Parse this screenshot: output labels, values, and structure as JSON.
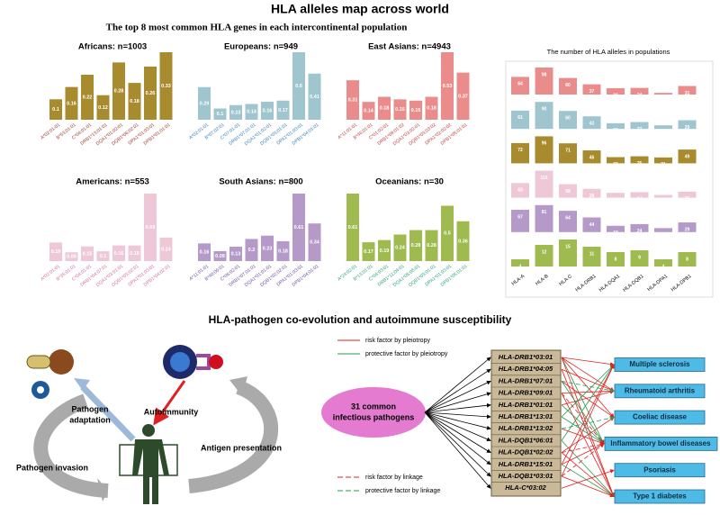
{
  "title": "HLA alleles map across world",
  "subtitle": "The top 8 most common HLA genes in each intercontinental population",
  "chart_data": [
    {
      "type": "bar",
      "title": "Africans: n=1003",
      "color": "#a88b2e",
      "label_color": "#9c3a2a",
      "categories": [
        "A*02:01:01",
        "B*53:01:01",
        "C*04:01:01",
        "DRB1*13:01:01",
        "DQA1*01:02:01",
        "DQB1*06:02:01",
        "DPA1*01:03:01",
        "DPB1*01:01:01"
      ],
      "values": [
        0.1,
        0.16,
        0.22,
        0.12,
        0.28,
        0.18,
        0.26,
        0.33
      ]
    },
    {
      "type": "bar",
      "title": "Europeans: n=949",
      "color": "#9fc5cf",
      "label_color": "#3a7fbf",
      "categories": [
        "A*02:01:01",
        "B*07:02:01",
        "C*07:01:01",
        "DRB1*07:01:01",
        "DQA1*01:02:01",
        "DQB1*03:01:01",
        "DPA1*01:03:01",
        "DPB1*04:01:01"
      ],
      "values": [
        0.29,
        0.1,
        0.13,
        0.14,
        0.16,
        0.17,
        0.6,
        0.41
      ]
    },
    {
      "type": "bar",
      "title": "East Asians: n=4943",
      "color": "#ea8c8c",
      "label_color": "#c04040",
      "categories": [
        "A*11:01:01",
        "B*46:01:01",
        "C*01:02:01",
        "DRB1*09:01:02",
        "DQA1*03:02:01",
        "DQB1*03:03:02",
        "DPA1*02:02:02",
        "DPB1*05:01:01"
      ],
      "values": [
        0.31,
        0.14,
        0.18,
        0.16,
        0.15,
        0.18,
        0.53,
        0.37
      ]
    },
    {
      "type": "bar",
      "title": "Americans: n=553",
      "color": "#efc8d8",
      "label_color": "#d070a0",
      "categories": [
        "A*02:01:01",
        "B*35:01:01",
        "C*04:01:01",
        "DRB1*04:07:01",
        "DQA1*03:01:01",
        "DQB1*03:02:01",
        "DPA1*01:03:01",
        "DPB1*04:02:01"
      ],
      "values": [
        0.19,
        0.09,
        0.15,
        0.1,
        0.16,
        0.16,
        0.69,
        0.24
      ]
    },
    {
      "type": "bar",
      "title": "South Asians: n=800",
      "color": "#b59ac9",
      "label_color": "#7050a0",
      "categories": [
        "A*11:01:01",
        "B*40:06:01",
        "C*06:02:01",
        "DRB1*07:01:01",
        "DQA1*01:01:01",
        "DQB1*02:02:01",
        "DPA1*01:03:01",
        "DPB1*04:01:01"
      ],
      "values": [
        0.16,
        0.09,
        0.13,
        0.2,
        0.23,
        0.18,
        0.61,
        0.34
      ]
    },
    {
      "type": "bar",
      "title": "Oceanians: n=30",
      "color": "#9fba4f",
      "label_color": "#2aa080",
      "categories": [
        "A*24:02:01",
        "B*13:01:01",
        "C*04:03:01",
        "DRB1*11:04:01",
        "DQA1*05:05:01",
        "DQB1*03:01:01",
        "DPA1*01:03:01",
        "DPB1*05:01:01"
      ],
      "values": [
        0.61,
        0.17,
        0.19,
        0.24,
        0.28,
        0.28,
        0.5,
        0.36
      ]
    },
    {
      "type": "bar",
      "title": "The number of HLA alleles in populations",
      "categories": [
        "HLA-A",
        "HLA-B",
        "HLA-C",
        "HLA-DRB1",
        "HLA-DQA1",
        "HLA-DQB1",
        "HLA-DPA1",
        "HLA-DPB1"
      ],
      "series": [
        {
          "color": "#ea8c8c",
          "values": [
            64,
            98,
            60,
            37,
            23,
            24,
            6,
            31
          ]
        },
        {
          "color": "#9fc5cf",
          "values": [
            61,
            90,
            60,
            42,
            19,
            23,
            12,
            29
          ]
        },
        {
          "color": "#a88b2e",
          "values": [
            72,
            96,
            71,
            46,
            22,
            25,
            21,
            49
          ]
        },
        {
          "color": "#efc8d8",
          "values": [
            63,
            116,
            58,
            38,
            21,
            24,
            12,
            26
          ]
        },
        {
          "color": "#b59ac9",
          "values": [
            67,
            81,
            64,
            44,
            19,
            24,
            12,
            29
          ]
        },
        {
          "color": "#9fba4f",
          "values": [
            4,
            12,
            15,
            11,
            8,
            9,
            4,
            8
          ]
        }
      ]
    }
  ],
  "coevolution": {
    "title": "HLA-pathogen co-evolution and autoimmune susceptibility",
    "adaptation": [
      "Pathogen",
      "adaptation"
    ],
    "autoimmunity": "Autoimmunity",
    "presentation": "Antigen presentation",
    "invasion": "Pathogen invasion",
    "legend": {
      "risk_pleiotropy": "risk factor by pleiotropy",
      "protective_pleiotropy": "protective factor by pleiotropy",
      "risk_linkage": "risk factor by linkage",
      "protective_linkage": "protective factor by linkage"
    },
    "pathogens": [
      "31 common",
      "infectious pathogens"
    ],
    "alleles": [
      "HLA-DRB1*03:01",
      "HLA-DRB1*04:05",
      "HLA-DRB1*07:01",
      "HLA-DRB1*09:01",
      "HLA-DRB1*01:01",
      "HLA-DRB1*13:01",
      "HLA-DRB1*13:02",
      "HLA-DQB1*06:01",
      "HLA-DQB1*02:02",
      "HLA-DRB1*15:01",
      "HLA-DQB1*03:01",
      "HLA-C*03:02"
    ],
    "diseases": [
      "Multiple sclerosis",
      "Rheumatoid arthritis",
      "Coeliac disease",
      "Inflammatory bowel diseases",
      "Psoriasis",
      "Type 1 diabetes"
    ]
  }
}
